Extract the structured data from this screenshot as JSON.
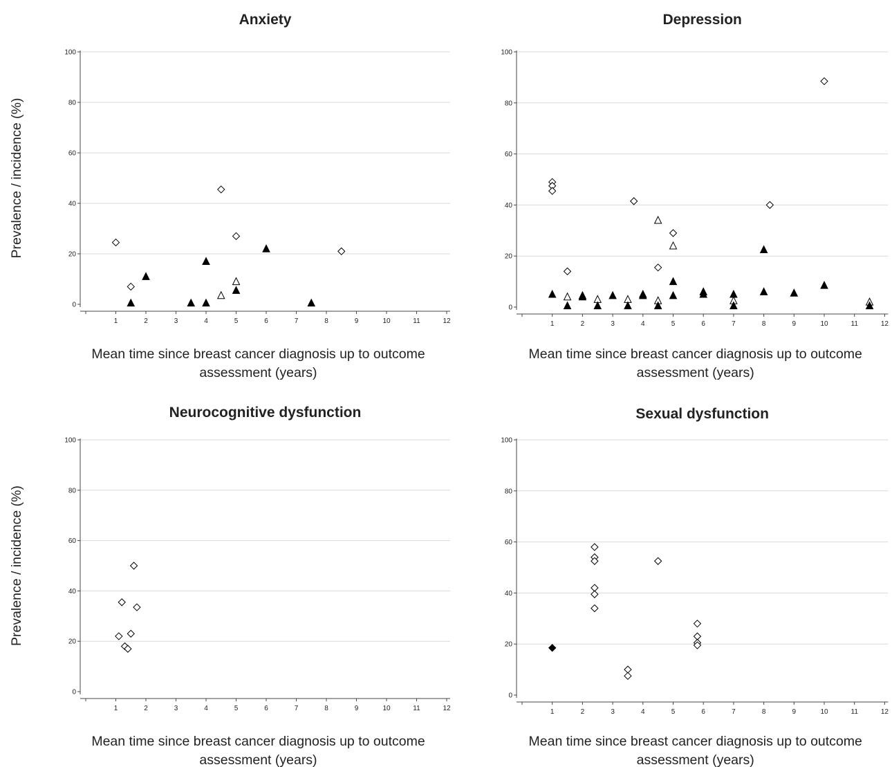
{
  "ylabel_left": "Prevalence / incidence (%)",
  "chart_data": [
    {
      "type": "scatter",
      "title": "Anxiety",
      "xlabel": "Mean time since breast cancer diagnosis up to outcome assessment (years)",
      "ylabel": "Prevalence / incidence (%)",
      "xlim": [
        0,
        12
      ],
      "ylim": [
        0,
        100
      ],
      "xticks": [
        1,
        2,
        3,
        4,
        5,
        6,
        7,
        8,
        9,
        10,
        11,
        12
      ],
      "yticks": [
        0,
        20,
        40,
        60,
        80,
        100
      ],
      "grid": "horizontal",
      "series": [
        {
          "marker": "open-diamond",
          "points": [
            [
              1,
              24.5
            ],
            [
              1.5,
              7
            ],
            [
              4.5,
              45.5
            ],
            [
              5,
              27
            ],
            [
              8.5,
              21
            ]
          ]
        },
        {
          "marker": "open-triangle",
          "points": [
            [
              4.5,
              3.5
            ],
            [
              5,
              9
            ]
          ]
        },
        {
          "marker": "filled-triangle",
          "points": [
            [
              1.5,
              0.5
            ],
            [
              2,
              11
            ],
            [
              3.5,
              0.5
            ],
            [
              4,
              0.5
            ],
            [
              4,
              17
            ],
            [
              5,
              5.5
            ],
            [
              6,
              22
            ],
            [
              7.5,
              0.5
            ]
          ]
        }
      ]
    },
    {
      "type": "scatter",
      "title": "Depression",
      "xlabel": "Mean time since breast cancer diagnosis up to outcome assessment (years)",
      "ylabel": "",
      "xlim": [
        0,
        12
      ],
      "ylim": [
        0,
        100
      ],
      "xticks": [
        1,
        2,
        3,
        4,
        5,
        6,
        7,
        8,
        9,
        10,
        11,
        12
      ],
      "yticks": [
        0,
        20,
        40,
        60,
        80,
        100
      ],
      "grid": "horizontal",
      "series": [
        {
          "marker": "open-diamond",
          "points": [
            [
              1,
              49
            ],
            [
              1,
              47.5
            ],
            [
              1,
              45.5
            ],
            [
              1.5,
              14
            ],
            [
              3.7,
              41.5
            ],
            [
              4.5,
              15.5
            ],
            [
              5,
              29
            ],
            [
              8.2,
              40
            ],
            [
              10,
              88.5
            ]
          ]
        },
        {
          "marker": "open-triangle",
          "points": [
            [
              1.5,
              4
            ],
            [
              2.5,
              3
            ],
            [
              3.5,
              3
            ],
            [
              4.5,
              34
            ],
            [
              4.5,
              2.5
            ],
            [
              5,
              24
            ],
            [
              7,
              2.5
            ],
            [
              11.5,
              2
            ]
          ]
        },
        {
          "marker": "filled-triangle",
          "points": [
            [
              1,
              5
            ],
            [
              1.5,
              0.5
            ],
            [
              2,
              4
            ],
            [
              2,
              4.5
            ],
            [
              2.5,
              0.5
            ],
            [
              3,
              4.5
            ],
            [
              3.5,
              0.5
            ],
            [
              4,
              4.5
            ],
            [
              4,
              5
            ],
            [
              4.5,
              0.5
            ],
            [
              5,
              10
            ],
            [
              5,
              4.5
            ],
            [
              6,
              5
            ],
            [
              6,
              6
            ],
            [
              7,
              5
            ],
            [
              7,
              0.5
            ],
            [
              8,
              22.5
            ],
            [
              8,
              6
            ],
            [
              9,
              5.5
            ],
            [
              10,
              8.5
            ],
            [
              11.5,
              0.5
            ]
          ]
        }
      ]
    },
    {
      "type": "scatter",
      "title": "Neurocognitive dysfunction",
      "xlabel": "Mean time since breast cancer diagnosis up to outcome assessment (years)",
      "ylabel": "Prevalence / incidence (%)",
      "xlim": [
        0,
        12
      ],
      "ylim": [
        0,
        100
      ],
      "xticks": [
        1,
        2,
        3,
        4,
        5,
        6,
        7,
        8,
        9,
        10,
        11,
        12
      ],
      "yticks": [
        0,
        20,
        40,
        60,
        80,
        100
      ],
      "grid": "horizontal",
      "series": [
        {
          "marker": "open-diamond",
          "points": [
            [
              1.1,
              22
            ],
            [
              1.2,
              35.5
            ],
            [
              1.3,
              18
            ],
            [
              1.4,
              17
            ],
            [
              1.5,
              23
            ],
            [
              1.6,
              50
            ],
            [
              1.7,
              33.5
            ]
          ]
        }
      ]
    },
    {
      "type": "scatter",
      "title": "Sexual dysfunction",
      "xlabel": "Mean time since breast cancer diagnosis up to outcome assessment (years)",
      "ylabel": "",
      "xlim": [
        0,
        12
      ],
      "ylim": [
        0,
        100
      ],
      "xticks": [
        1,
        2,
        3,
        4,
        5,
        6,
        7,
        8,
        9,
        10,
        11,
        12
      ],
      "yticks": [
        0,
        20,
        40,
        60,
        80,
        100
      ],
      "grid": "horizontal",
      "series": [
        {
          "marker": "open-diamond",
          "points": [
            [
              2.4,
              58
            ],
            [
              2.4,
              54
            ],
            [
              2.4,
              52.5
            ],
            [
              2.4,
              42
            ],
            [
              2.4,
              39.5
            ],
            [
              2.4,
              34
            ],
            [
              3.5,
              10
            ],
            [
              3.5,
              7.5
            ],
            [
              4.5,
              52.5
            ],
            [
              5.8,
              28
            ],
            [
              5.8,
              23
            ],
            [
              5.8,
              20.5
            ],
            [
              5.8,
              19.5
            ]
          ]
        },
        {
          "marker": "filled-diamond",
          "points": [
            [
              1,
              18.5
            ]
          ]
        }
      ]
    }
  ]
}
